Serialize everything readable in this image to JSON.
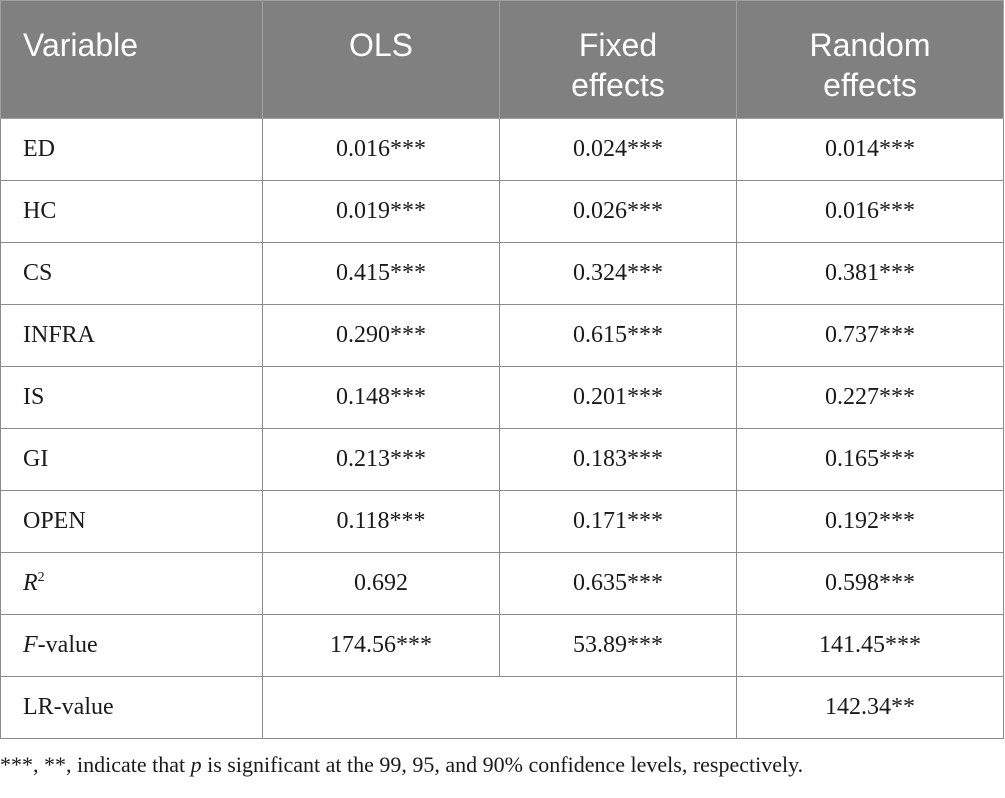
{
  "table": {
    "headers": [
      {
        "lines": [
          "Variable"
        ]
      },
      {
        "lines": [
          "OLS"
        ]
      },
      {
        "lines": [
          "Fixed",
          "effects"
        ]
      },
      {
        "lines": [
          "Random",
          "effects"
        ]
      }
    ],
    "rows": [
      {
        "label": "ED",
        "ols": "0.016***",
        "fixed": "0.024***",
        "random": "0.014***"
      },
      {
        "label": "HC",
        "ols": "0.019***",
        "fixed": "0.026***",
        "random": "0.016***"
      },
      {
        "label": "CS",
        "ols": "0.415***",
        "fixed": "0.324***",
        "random": "0.381***"
      },
      {
        "label": "INFRA",
        "ols": "0.290***",
        "fixed": "0.615***",
        "random": "0.737***"
      },
      {
        "label": "IS",
        "ols": "0.148***",
        "fixed": "0.201***",
        "random": "0.227***"
      },
      {
        "label": "GI",
        "ols": "0.213***",
        "fixed": "0.183***",
        "random": "0.165***"
      },
      {
        "label": "OPEN",
        "ols": "0.118***",
        "fixed": "0.171***",
        "random": "0.192***"
      }
    ],
    "r2_row": {
      "label_italic": "R",
      "label_sup": "2",
      "ols": "0.692",
      "fixed": "0.635***",
      "random": "0.598***"
    },
    "f_row": {
      "label_italic": "F",
      "label_rest": "-value",
      "ols": "174.56***",
      "fixed": "53.89***",
      "random": "141.45***"
    },
    "lr_row": {
      "label": "LR-value",
      "ols_fixed": "",
      "random": "142.34**"
    }
  },
  "footnote": {
    "before": "***, **, indicate that ",
    "italic": "p",
    "after": " is significant at the 99, 95, and 90% confidence levels, respectively."
  }
}
